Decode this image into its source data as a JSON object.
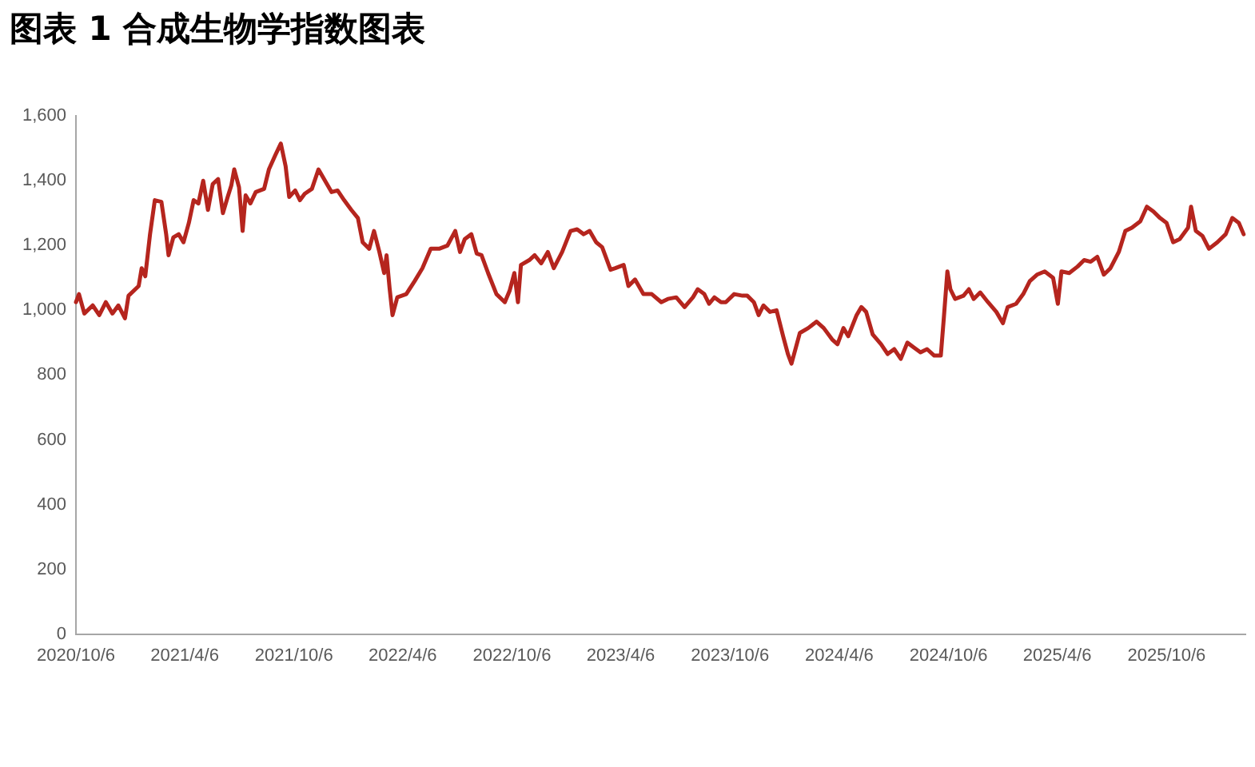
{
  "chart_data": {
    "type": "line",
    "title": "图表 1 合成生物学指数图表",
    "x": [
      "2020-10-06",
      "2020-10-11",
      "2020-10-20",
      "2020-11-03",
      "2020-11-14",
      "2020-11-25",
      "2020-12-06",
      "2020-12-16",
      "2020-12-27",
      "2021-01-02",
      "2021-01-19",
      "2021-01-24",
      "2021-01-30",
      "2021-02-07",
      "2021-02-15",
      "2021-02-26",
      "2021-03-06",
      "2021-03-10",
      "2021-03-18",
      "2021-03-27",
      "2021-04-04",
      "2021-04-13",
      "2021-04-21",
      "2021-04-29",
      "2021-05-07",
      "2021-05-15",
      "2021-05-23",
      "2021-06-01",
      "2021-06-09",
      "2021-06-17",
      "2021-06-23",
      "2021-06-28",
      "2021-07-06",
      "2021-07-12",
      "2021-07-17",
      "2021-07-25",
      "2021-08-03",
      "2021-08-17",
      "2021-08-25",
      "2021-09-05",
      "2021-09-14",
      "2021-09-22",
      "2021-09-28",
      "2021-10-08",
      "2021-10-16",
      "2021-10-24",
      "2021-11-05",
      "2021-11-16",
      "2021-11-27",
      "2021-12-08",
      "2021-12-18",
      "2021-12-29",
      "2022-01-10",
      "2022-01-21",
      "2022-01-29",
      "2022-02-09",
      "2022-02-17",
      "2022-02-26",
      "2022-03-06",
      "2022-03-10",
      "2022-03-15",
      "2022-03-20",
      "2022-03-28",
      "2022-04-12",
      "2022-04-26",
      "2022-05-09",
      "2022-05-23",
      "2022-06-06",
      "2022-06-20",
      "2022-07-03",
      "2022-07-11",
      "2022-07-19",
      "2022-07-30",
      "2022-08-08",
      "2022-08-16",
      "2022-08-27",
      "2022-09-10",
      "2022-09-24",
      "2022-10-02",
      "2022-10-10",
      "2022-10-16",
      "2022-10-21",
      "2022-11-04",
      "2022-11-13",
      "2022-11-24",
      "2022-12-05",
      "2022-12-15",
      "2022-12-29",
      "2023-01-12",
      "2023-01-23",
      "2023-02-03",
      "2023-02-13",
      "2023-02-24",
      "2023-03-06",
      "2023-03-20",
      "2023-03-28",
      "2023-04-11",
      "2023-04-19",
      "2023-04-30",
      "2023-05-14",
      "2023-05-28",
      "2023-06-13",
      "2023-06-24",
      "2023-07-08",
      "2023-07-22",
      "2023-08-05",
      "2023-08-13",
      "2023-08-24",
      "2023-09-01",
      "2023-09-10",
      "2023-09-21",
      "2023-09-29",
      "2023-10-13",
      "2023-10-27",
      "2023-11-04",
      "2023-11-15",
      "2023-11-23",
      "2023-12-01",
      "2023-12-12",
      "2023-12-23",
      "2024-01-03",
      "2024-01-11",
      "2024-01-17",
      "2024-01-31",
      "2024-02-14",
      "2024-02-28",
      "2024-03-11",
      "2024-03-25",
      "2024-04-03",
      "2024-04-13",
      "2024-04-21",
      "2024-05-05",
      "2024-05-13",
      "2024-05-21",
      "2024-06-01",
      "2024-06-15",
      "2024-06-26",
      "2024-07-07",
      "2024-07-18",
      "2024-07-29",
      "2024-08-09",
      "2024-08-20",
      "2024-08-31",
      "2024-09-12",
      "2024-09-23",
      "2024-09-28",
      "2024-10-04",
      "2024-10-09",
      "2024-10-17",
      "2024-10-31",
      "2024-11-09",
      "2024-11-17",
      "2024-11-28",
      "2024-12-11",
      "2024-12-25",
      "2025-01-05",
      "2025-01-13",
      "2025-01-27",
      "2025-02-08",
      "2025-02-19",
      "2025-03-03",
      "2025-03-16",
      "2025-03-30",
      "2025-04-07",
      "2025-04-13",
      "2025-04-26",
      "2025-05-10",
      "2025-05-21",
      "2025-06-01",
      "2025-06-12",
      "2025-06-23",
      "2025-07-04",
      "2025-07-18",
      "2025-07-29",
      "2025-08-09",
      "2025-08-23",
      "2025-09-03",
      "2025-09-14",
      "2025-09-25",
      "2025-10-06",
      "2025-10-17",
      "2025-10-28",
      "2025-11-11",
      "2025-11-16",
      "2025-11-24",
      "2025-12-05",
      "2025-12-16",
      "2025-12-30",
      "2026-01-13",
      "2026-01-24",
      "2026-02-04",
      "2026-02-12"
    ],
    "series": [
      {
        "color": "#b5251e",
        "values": [
          1025,
          1050,
          990,
          1015,
          985,
          1025,
          990,
          1015,
          975,
          1045,
          1075,
          1130,
          1105,
          1235,
          1340,
          1335,
          1235,
          1170,
          1225,
          1235,
          1210,
          1270,
          1340,
          1330,
          1400,
          1310,
          1390,
          1405,
          1300,
          1350,
          1385,
          1435,
          1380,
          1245,
          1355,
          1330,
          1365,
          1375,
          1435,
          1480,
          1515,
          1445,
          1350,
          1370,
          1340,
          1360,
          1375,
          1435,
          1400,
          1365,
          1370,
          1340,
          1310,
          1285,
          1210,
          1190,
          1245,
          1180,
          1115,
          1170,
          1070,
          985,
          1040,
          1050,
          1090,
          1130,
          1190,
          1190,
          1200,
          1245,
          1180,
          1220,
          1235,
          1175,
          1170,
          1115,
          1050,
          1025,
          1060,
          1115,
          1025,
          1140,
          1155,
          1170,
          1145,
          1180,
          1130,
          1180,
          1245,
          1250,
          1235,
          1245,
          1210,
          1195,
          1125,
          1130,
          1140,
          1075,
          1095,
          1050,
          1050,
          1025,
          1035,
          1040,
          1010,
          1040,
          1065,
          1050,
          1020,
          1040,
          1025,
          1025,
          1050,
          1045,
          1045,
          1025,
          985,
          1015,
          995,
          1000,
          920,
          865,
          835,
          930,
          945,
          965,
          945,
          910,
          895,
          945,
          920,
          985,
          1010,
          995,
          925,
          895,
          865,
          880,
          850,
          900,
          885,
          870,
          880,
          860,
          860,
          975,
          1120,
          1065,
          1035,
          1045,
          1065,
          1035,
          1055,
          1025,
          995,
          960,
          1010,
          1020,
          1050,
          1090,
          1110,
          1120,
          1100,
          1020,
          1120,
          1115,
          1135,
          1155,
          1150,
          1165,
          1110,
          1130,
          1180,
          1245,
          1255,
          1275,
          1320,
          1305,
          1285,
          1270,
          1210,
          1220,
          1255,
          1320,
          1245,
          1230,
          1190,
          1210,
          1235,
          1285,
          1270,
          1235
        ]
      }
    ],
    "xlim": [
      "2020-10-06",
      "2026-02-15"
    ],
    "xticks": [
      {
        "value": "2020-10-06",
        "label": "2020/10/6"
      },
      {
        "value": "2021-04-06",
        "label": "2021/4/6"
      },
      {
        "value": "2021-10-06",
        "label": "2021/10/6"
      },
      {
        "value": "2022-04-06",
        "label": "2022/4/6"
      },
      {
        "value": "2022-10-06",
        "label": "2022/10/6"
      },
      {
        "value": "2023-04-06",
        "label": "2023/4/6"
      },
      {
        "value": "2023-10-06",
        "label": "2023/10/6"
      },
      {
        "value": "2024-04-06",
        "label": "2024/4/6"
      },
      {
        "value": "2024-10-06",
        "label": "2024/10/6"
      },
      {
        "value": "2025-04-06",
        "label": "2025/4/6"
      },
      {
        "value": "2025-10-06",
        "label": "2025/10/6"
      }
    ],
    "ylim": [
      0,
      1600
    ],
    "yticks": [
      {
        "value": 0,
        "label": "0"
      },
      {
        "value": 200,
        "label": "200"
      },
      {
        "value": 400,
        "label": "400"
      },
      {
        "value": 600,
        "label": "600"
      },
      {
        "value": 800,
        "label": "800"
      },
      {
        "value": 1000,
        "label": "1,000"
      },
      {
        "value": 1200,
        "label": "1,200"
      },
      {
        "value": 1400,
        "label": "1,400"
      },
      {
        "value": 1600,
        "label": "1,600"
      }
    ],
    "grid": false,
    "legend": false,
    "marker": "none",
    "line_style": "solid"
  }
}
